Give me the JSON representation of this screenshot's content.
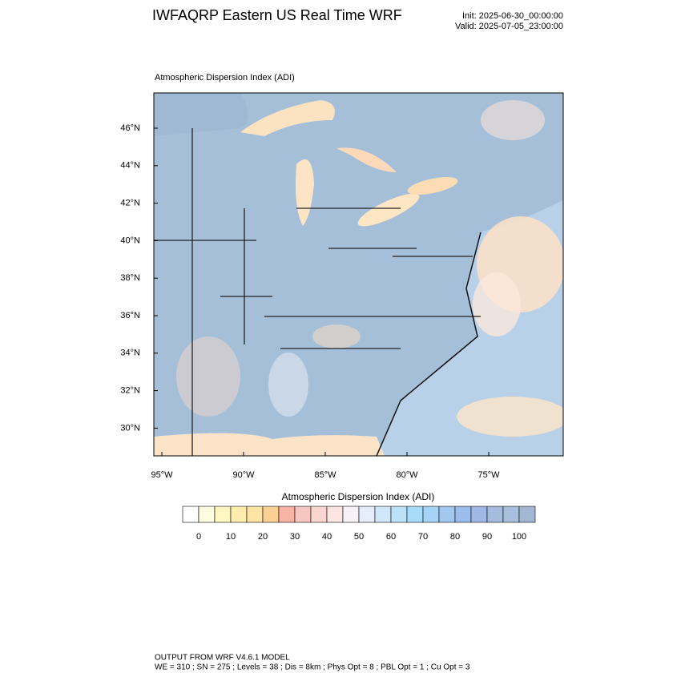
{
  "header": {
    "title": "IWFAQRP Eastern US Real Time WRF",
    "init": "Init: 2025-06-30_00:00:00",
    "valid": "Valid: 2025-07-05_23:00:00"
  },
  "map": {
    "title": "Atmospheric Dispersion Index   (ADI)",
    "lat_labels": [
      {
        "value": 46,
        "label": "46°N"
      },
      {
        "value": 44,
        "label": "44°N"
      },
      {
        "value": 42,
        "label": "42°N"
      },
      {
        "value": 40,
        "label": "40°N"
      },
      {
        "value": 38,
        "label": "38°N"
      },
      {
        "value": 36,
        "label": "36°N"
      },
      {
        "value": 34,
        "label": "34°N"
      },
      {
        "value": 32,
        "label": "32°N"
      },
      {
        "value": 30,
        "label": "30°N"
      }
    ],
    "lon_labels": [
      {
        "value": -95,
        "label": "95°W"
      },
      {
        "value": -90,
        "label": "90°W"
      },
      {
        "value": -85,
        "label": "85°W"
      },
      {
        "value": -80,
        "label": "80°W"
      },
      {
        "value": -75,
        "label": "75°W"
      }
    ]
  },
  "colorbar": {
    "label": "Atmospheric Dispersion Index (ADI)",
    "ticks": [
      0,
      10,
      20,
      30,
      40,
      50,
      60,
      70,
      80,
      90,
      100
    ],
    "colors": [
      "#ffffff",
      "#fffde0",
      "#fff6c4",
      "#ffedb0",
      "#fde3a4",
      "#fbd094",
      "#f7b4a4",
      "#f8c6c0",
      "#f9d6d0",
      "#fbe6e2",
      "#f8f2f6",
      "#e6eefc",
      "#d2e8fa",
      "#bce2f8",
      "#a8dcf8",
      "#a6d4f6",
      "#a2c8f0",
      "#9cbcec",
      "#a0b8e6",
      "#a6bcdc",
      "#a8c0dc",
      "#a2b8d2"
    ]
  },
  "footer": {
    "line1": "OUTPUT FROM WRF V4.6.1 MODEL",
    "line2": "WE = 310 ; SN = 275 ; Levels = 38 ; Dis = 8km ; Phys Opt = 8 ; PBL Opt = 1 ; Cu Opt = 3"
  }
}
